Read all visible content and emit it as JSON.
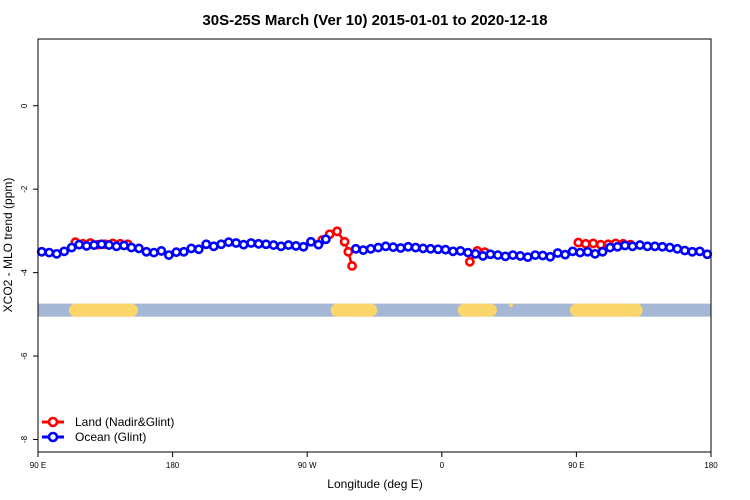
{
  "chart_data": {
    "type": "line",
    "title": "30S-25S March (Ver 10)   2015-01-01 to 2020-12-18",
    "xlabel": "Longitude (deg E)",
    "ylabel": "XCO2 - MLO trend (ppm)",
    "xlim": [
      90,
      450
    ],
    "ylim": [
      -8.3,
      1.6
    ],
    "x_ticks": [
      {
        "value": 90,
        "label": "90 E"
      },
      {
        "value": 162,
        "label": "180"
      },
      {
        "value": 234,
        "label": "90 W"
      },
      {
        "value": 306,
        "label": "0"
      },
      {
        "value": 378,
        "label": "90 E"
      },
      {
        "value": 450,
        "label": "180"
      }
    ],
    "y_ticks": [
      {
        "value": 0,
        "label": "0"
      },
      {
        "value": -2,
        "label": "-2"
      },
      {
        "value": -4,
        "label": "-4"
      },
      {
        "value": -6,
        "label": "-6"
      },
      {
        "value": -8,
        "label": "-8"
      }
    ],
    "land_band": {
      "y": -4.9,
      "base_color": "#a4b8d6",
      "land_color": "#fbd66a",
      "land_segments": [
        [
          110,
          140
        ],
        [
          250,
          268
        ],
        [
          318,
          332
        ],
        [
          378,
          410
        ]
      ],
      "dots": [
        343
      ]
    },
    "series": [
      {
        "name": "Land (Nadir&Glint)",
        "color": "#ff0000",
        "x": [
          110,
          114,
          118,
          122,
          126,
          130,
          134,
          138,
          242,
          246,
          250,
          254,
          256,
          258,
          321,
          325,
          329,
          379,
          383,
          387,
          391,
          395,
          399,
          403,
          407
        ],
        "y": [
          -3.27,
          -3.31,
          -3.29,
          -3.33,
          -3.32,
          -3.3,
          -3.31,
          -3.32,
          -3.22,
          -3.08,
          -3.01,
          -3.26,
          -3.5,
          -3.84,
          -3.74,
          -3.48,
          -3.51,
          -3.28,
          -3.31,
          -3.3,
          -3.33,
          -3.32,
          -3.3,
          -3.31,
          -3.33
        ],
        "segments": [
          [
            0,
            7
          ],
          [
            8,
            13
          ],
          [
            14,
            16
          ],
          [
            17,
            24
          ]
        ]
      },
      {
        "name": "Ocean (Glint)",
        "color": "#0000ff",
        "x": [
          92,
          96,
          100,
          104,
          108,
          112,
          116,
          120,
          124,
          128,
          132,
          136,
          140,
          144,
          148,
          152,
          156,
          160,
          164,
          168,
          172,
          176,
          180,
          184,
          188,
          192,
          196,
          200,
          204,
          208,
          212,
          216,
          220,
          224,
          228,
          232,
          236,
          240,
          244,
          260,
          264,
          268,
          272,
          276,
          280,
          284,
          288,
          292,
          296,
          300,
          304,
          308,
          312,
          316,
          320,
          324,
          328,
          332,
          336,
          340,
          344,
          348,
          352,
          356,
          360,
          364,
          368,
          372,
          376,
          380,
          384,
          388,
          392,
          396,
          400,
          404,
          408,
          412,
          416,
          420,
          424,
          428,
          432,
          436,
          440,
          444,
          448
        ],
        "y": [
          -3.5,
          -3.52,
          -3.55,
          -3.49,
          -3.4,
          -3.33,
          -3.36,
          -3.34,
          -3.32,
          -3.34,
          -3.37,
          -3.35,
          -3.4,
          -3.42,
          -3.5,
          -3.52,
          -3.48,
          -3.58,
          -3.51,
          -3.5,
          -3.42,
          -3.44,
          -3.32,
          -3.37,
          -3.32,
          -3.27,
          -3.29,
          -3.33,
          -3.29,
          -3.31,
          -3.32,
          -3.34,
          -3.37,
          -3.34,
          -3.36,
          -3.38,
          -3.26,
          -3.33,
          -3.2,
          -3.43,
          -3.46,
          -3.43,
          -3.4,
          -3.37,
          -3.39,
          -3.41,
          -3.38,
          -3.4,
          -3.42,
          -3.43,
          -3.44,
          -3.45,
          -3.49,
          -3.48,
          -3.52,
          -3.55,
          -3.6,
          -3.56,
          -3.58,
          -3.61,
          -3.58,
          -3.6,
          -3.63,
          -3.58,
          -3.59,
          -3.62,
          -3.53,
          -3.57,
          -3.49,
          -3.52,
          -3.5,
          -3.55,
          -3.5,
          -3.4,
          -3.38,
          -3.35,
          -3.37,
          -3.34,
          -3.37,
          -3.37,
          -3.38,
          -3.4,
          -3.43,
          -3.47,
          -3.5,
          -3.49,
          -3.56
        ],
        "segments": [
          [
            0,
            38
          ],
          [
            39,
            86
          ]
        ]
      }
    ],
    "legend": {
      "position": "bottom-left"
    }
  }
}
